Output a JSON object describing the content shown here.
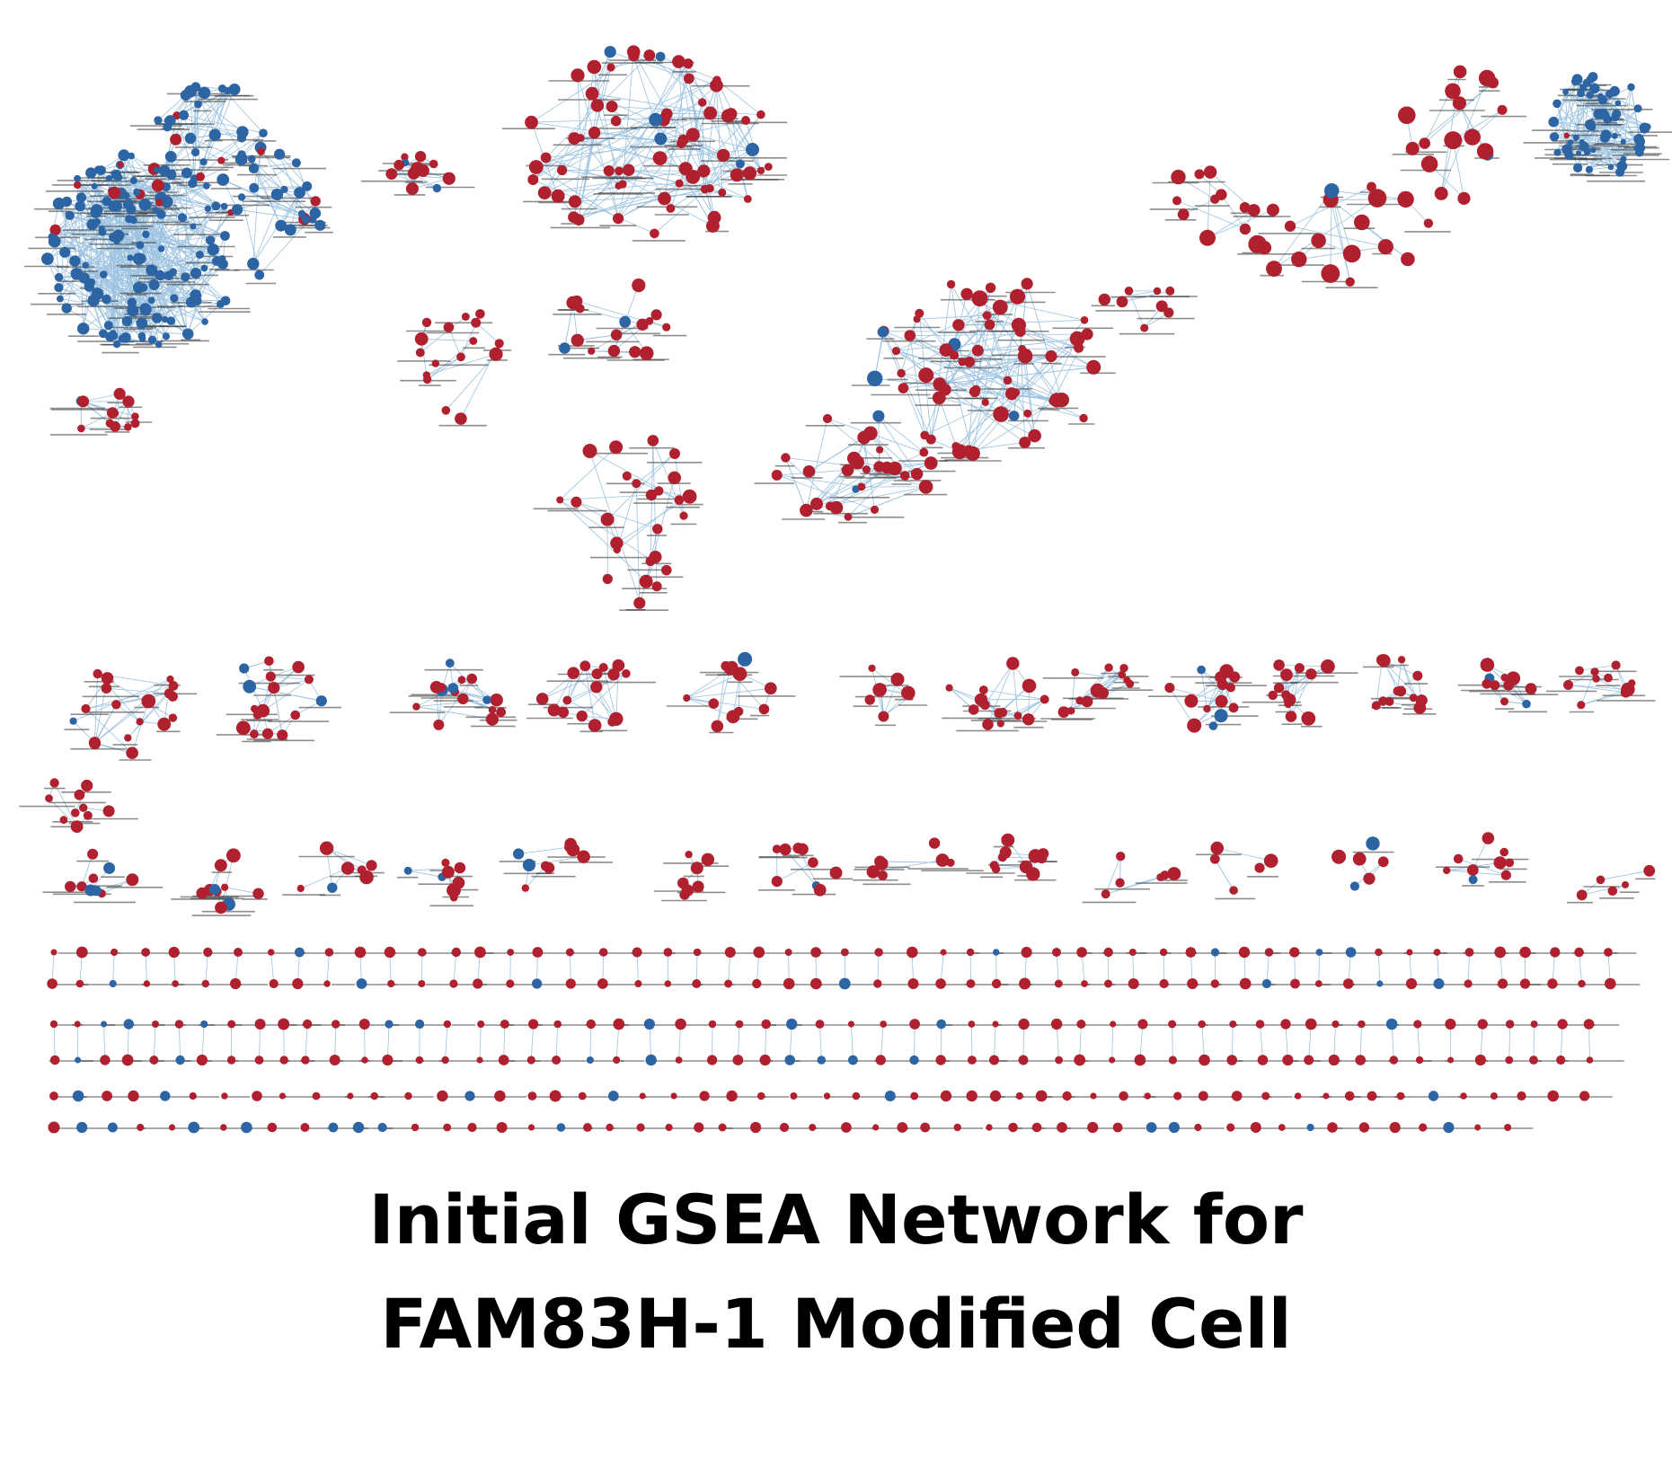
{
  "figure": {
    "title_line1": "Initial GSEA Network for",
    "title_line2": "FAM83H-1 Modified Cell"
  },
  "legend_colors": {
    "up_node": "#b0202e",
    "down_node": "#2c64a4",
    "edge": "#9cc2e0",
    "label": "#333333"
  },
  "network": {
    "node_kinds": [
      "up",
      "down"
    ],
    "description_visible": false
  }
}
